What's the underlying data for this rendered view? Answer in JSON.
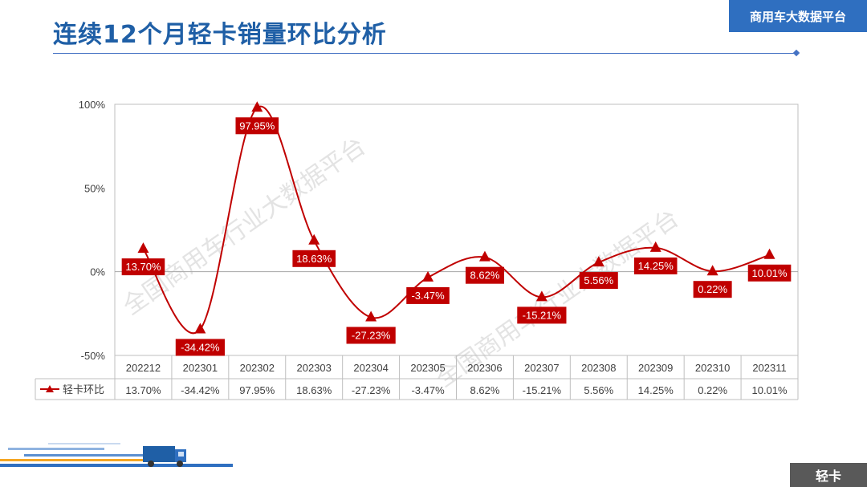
{
  "header": {
    "title": "连续12个月轻卡销量环比分析",
    "brand": "商用车大数据平台"
  },
  "footer": {
    "category_tag": "轻卡"
  },
  "watermark": "全国商用车行业大数据平台",
  "colors": {
    "series": "#c00000",
    "title": "#1f5fa6",
    "brand_bg": "#2f6fc0",
    "tag_bg": "#595959"
  },
  "chart_data": {
    "type": "line",
    "title": "",
    "categories": [
      "202212",
      "202301",
      "202302",
      "202303",
      "202304",
      "202305",
      "202306",
      "202307",
      "202308",
      "202309",
      "202310",
      "202311"
    ],
    "series": [
      {
        "name": "轻卡环比",
        "values": [
          13.7,
          -34.42,
          97.95,
          18.63,
          -27.23,
          -3.47,
          8.62,
          -15.21,
          5.56,
          14.25,
          0.22,
          10.01
        ],
        "labels": [
          "13.70%",
          "-34.42%",
          "97.95%",
          "18.63%",
          "-27.23%",
          "-3.47%",
          "8.62%",
          "-15.21%",
          "5.56%",
          "14.25%",
          "0.22%",
          "10.01%"
        ],
        "marker": "triangle",
        "smooth": true
      }
    ],
    "ylim": [
      -50,
      100
    ],
    "yticks": [
      "-50%",
      "0%",
      "50%",
      "100%"
    ],
    "ytick_values": [
      -50,
      0,
      50,
      100
    ],
    "data_table": true,
    "legend": "in data table",
    "grid": false
  }
}
